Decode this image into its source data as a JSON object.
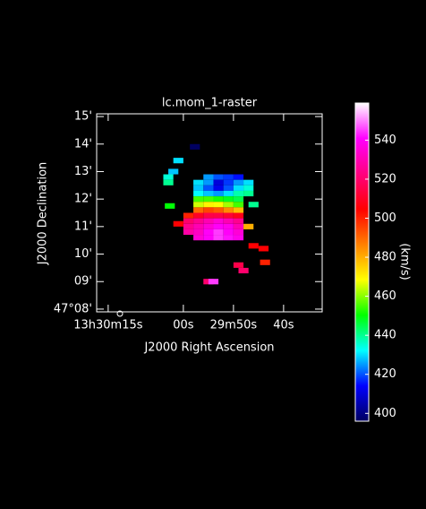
{
  "chart_data": {
    "type": "raster",
    "title": "lc.mom_1-raster",
    "xlabel": "J2000 Right Ascension",
    "ylabel": "J2000 Declination",
    "colorbar_label": "(km/s)",
    "xlim": [
      17.3,
      -27.7
    ],
    "ylim": [
      7.9,
      15.1
    ],
    "xticks": [
      {
        "value": 15,
        "label": "13h30m15s"
      },
      {
        "value": 0,
        "label": "00s"
      },
      {
        "value": -10,
        "label": "29m50s"
      },
      {
        "value": -20,
        "label": "40s"
      }
    ],
    "yticks": [
      {
        "value": 8,
        "label": "47°08'"
      },
      {
        "value": 9,
        "label": "09'"
      },
      {
        "value": 10,
        "label": "10'"
      },
      {
        "value": 11,
        "label": "11'"
      },
      {
        "value": 12,
        "label": "12'"
      },
      {
        "value": 13,
        "label": "13'"
      },
      {
        "value": 14,
        "label": "14'"
      },
      {
        "value": 15,
        "label": "15'"
      }
    ],
    "clim": [
      396,
      559
    ],
    "cticks": [
      400,
      420,
      440,
      460,
      480,
      500,
      520,
      540
    ],
    "colormap": [
      "#000060",
      "#0000ff",
      "#00ffff",
      "#00ff00",
      "#ffff00",
      "#ff8000",
      "#ff0000",
      "#ff0080",
      "#ff00ff",
      "#ffffff"
    ],
    "x": [
      -5,
      -7,
      -9,
      -11,
      -3,
      -5,
      -7,
      -9,
      -11,
      -13,
      -3,
      -5,
      -7,
      -9,
      -11,
      -13,
      -3,
      -5,
      -7,
      -9,
      -11,
      -13,
      -3,
      -5,
      -7,
      -9,
      -11,
      -3,
      -5,
      -7,
      -9,
      -11,
      -3,
      -5,
      -7,
      -9,
      -11,
      -1,
      -3,
      -5,
      -7,
      -9,
      -11,
      -1,
      -3,
      -5,
      -7,
      -9,
      -11,
      -1,
      -3,
      -5,
      -7,
      -9,
      -11,
      -1,
      -3,
      -5,
      -7,
      -9,
      -11,
      -3,
      -5,
      -7,
      -9,
      -11,
      1,
      1,
      2,
      3,
      3,
      2.7,
      -2.3,
      -14,
      -13,
      -14,
      -16,
      -16.3,
      -11,
      -12,
      -5,
      -6
    ],
    "y": [
      12.8,
      12.8,
      12.8,
      12.8,
      12.6,
      12.6,
      12.6,
      12.6,
      12.6,
      12.6,
      12.4,
      12.4,
      12.4,
      12.4,
      12.4,
      12.4,
      12.2,
      12.2,
      12.2,
      12.2,
      12.2,
      12.2,
      12.0,
      12.0,
      12.0,
      12.0,
      12.0,
      11.8,
      11.8,
      11.8,
      11.8,
      11.8,
      11.6,
      11.6,
      11.6,
      11.6,
      11.6,
      11.4,
      11.4,
      11.4,
      11.4,
      11.4,
      11.4,
      11.2,
      11.2,
      11.2,
      11.2,
      11.2,
      11.2,
      11.0,
      11.0,
      11.0,
      11.0,
      11.0,
      11.0,
      10.8,
      10.8,
      10.8,
      10.8,
      10.8,
      10.8,
      10.6,
      10.6,
      10.6,
      10.6,
      10.6,
      11.1,
      13.4,
      13.0,
      12.8,
      12.6,
      11.75,
      13.9,
      11.8,
      11.0,
      10.3,
      10.2,
      9.7,
      9.6,
      9.4,
      9.0,
      9.0
    ],
    "values": [
      425,
      420,
      418,
      415,
      430,
      425,
      410,
      418,
      425,
      430,
      428,
      420,
      412,
      420,
      430,
      435,
      432,
      428,
      425,
      430,
      438,
      440,
      455,
      455,
      452,
      448,
      445,
      465,
      470,
      468,
      462,
      455,
      490,
      495,
      492,
      485,
      478,
      500,
      510,
      515,
      515,
      512,
      508,
      520,
      525,
      530,
      535,
      530,
      525,
      525,
      530,
      535,
      540,
      538,
      530,
      528,
      532,
      540,
      545,
      540,
      535,
      535,
      540,
      545,
      542,
      538,
      505,
      430,
      428,
      435,
      440,
      450,
      395,
      440,
      480,
      505,
      505,
      500,
      515,
      520,
      520,
      545
    ]
  }
}
